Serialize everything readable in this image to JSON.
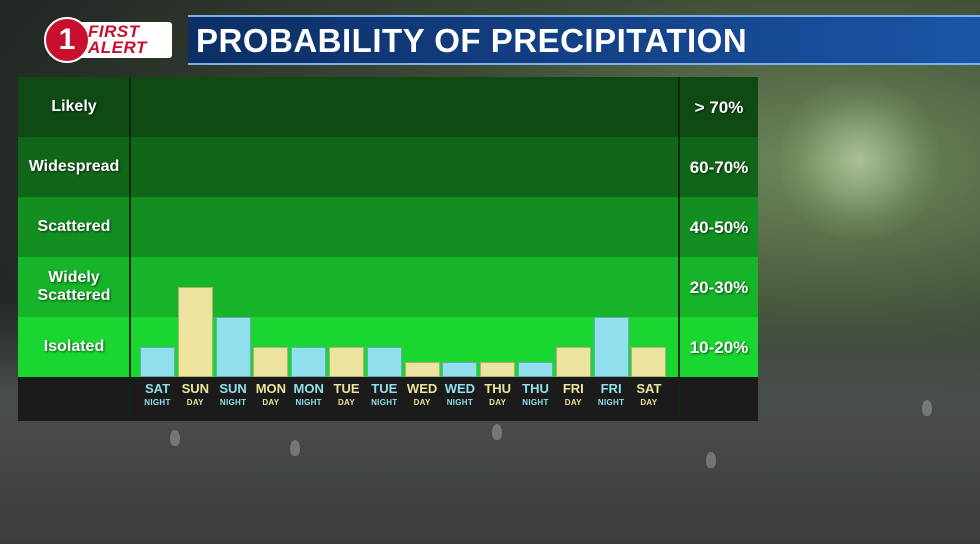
{
  "header": {
    "logo_number": "1",
    "logo_word_1": "FIRST",
    "logo_word_2": "ALERT",
    "title": "PROBABILITY OF PRECIPITATION"
  },
  "bands": [
    {
      "label": "Likely",
      "range": "> 70%",
      "color": "#0f4a14"
    },
    {
      "label": "Widespread",
      "range": "60-70%",
      "color": "#11661a"
    },
    {
      "label": "Scattered",
      "range": "40-50%",
      "color": "#138e21"
    },
    {
      "label": "Widely Scattered",
      "range": "20-30%",
      "color": "#16b428"
    },
    {
      "label": "Isolated",
      "range": "10-20%",
      "color": "#1ad630"
    }
  ],
  "colors": {
    "day": "#ece49e",
    "night": "#8fe0ec"
  },
  "chart_data": {
    "type": "bar",
    "title": "PROBABILITY OF PRECIPITATION",
    "ylabel": "",
    "ylim": [
      0,
      100
    ],
    "categories": [
      {
        "day": "SAT",
        "period": "NIGHT"
      },
      {
        "day": "SUN",
        "period": "DAY"
      },
      {
        "day": "SUN",
        "period": "NIGHT"
      },
      {
        "day": "MON",
        "period": "DAY"
      },
      {
        "day": "MON",
        "period": "NIGHT"
      },
      {
        "day": "TUE",
        "period": "DAY"
      },
      {
        "day": "TUE",
        "period": "NIGHT"
      },
      {
        "day": "WED",
        "period": "DAY"
      },
      {
        "day": "WED",
        "period": "NIGHT"
      },
      {
        "day": "THU",
        "period": "DAY"
      },
      {
        "day": "THU",
        "period": "NIGHT"
      },
      {
        "day": "FRI",
        "period": "DAY"
      },
      {
        "day": "FRI",
        "period": "NIGHT"
      },
      {
        "day": "SAT",
        "period": "DAY"
      }
    ],
    "values": [
      10,
      30,
      20,
      10,
      10,
      10,
      10,
      5,
      5,
      5,
      5,
      10,
      20,
      10
    ]
  }
}
